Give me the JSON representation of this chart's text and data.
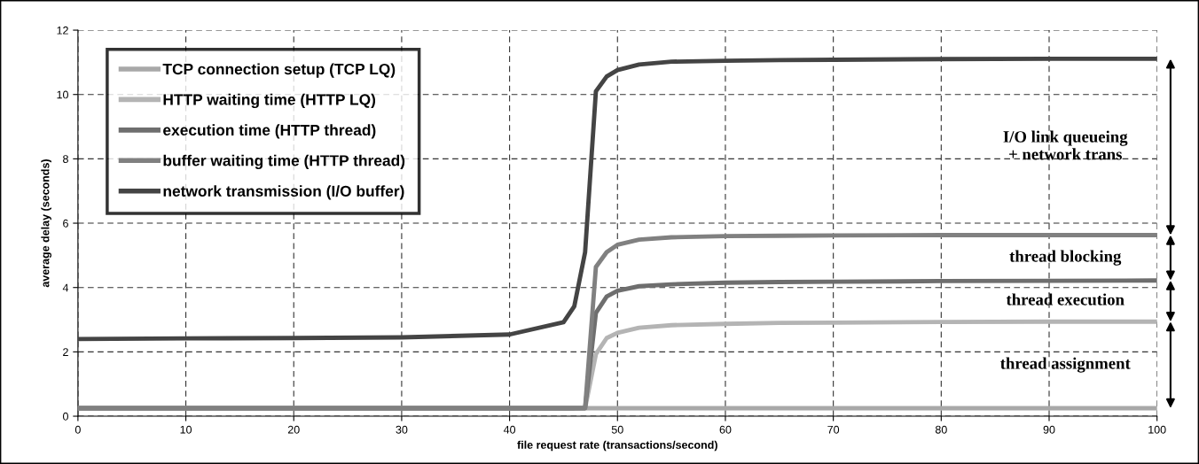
{
  "chart_data": {
    "type": "line",
    "xlabel": "file request rate (transactions/second)",
    "ylabel": "average delay (seconds)",
    "x": [
      0,
      10,
      20,
      30,
      40,
      45,
      46,
      47,
      48,
      49,
      50,
      52,
      55,
      60,
      65,
      70,
      80,
      90,
      100
    ],
    "series": [
      {
        "name": "TCP connection setup (TCP LQ)",
        "color": "#a8a8a8",
        "values": [
          0.25,
          0.25,
          0.25,
          0.25,
          0.25,
          0.25,
          0.25,
          0.25,
          0.25,
          0.25,
          0.25,
          0.25,
          0.25,
          0.25,
          0.25,
          0.25,
          0.25,
          0.25,
          0.25
        ]
      },
      {
        "name": "HTTP waiting time (HTTP LQ)",
        "color": "#b4b4b4",
        "values": [
          0.25,
          0.25,
          0.25,
          0.25,
          0.25,
          0.25,
          0.25,
          0.25,
          1.93,
          2.43,
          2.59,
          2.75,
          2.83,
          2.87,
          2.9,
          2.91,
          2.93,
          2.94,
          2.94
        ]
      },
      {
        "name": "execution time (HTTP thread)",
        "color": "#6e6e6e",
        "values": [
          0.25,
          0.25,
          0.25,
          0.25,
          0.25,
          0.25,
          0.25,
          0.25,
          3.21,
          3.72,
          3.9,
          4.04,
          4.1,
          4.15,
          4.17,
          4.18,
          4.2,
          4.21,
          4.22
        ]
      },
      {
        "name": "buffer waiting time (HTTP thread)",
        "color": "#808080",
        "values": [
          0.25,
          0.25,
          0.25,
          0.25,
          0.25,
          0.25,
          0.25,
          0.26,
          4.64,
          5.1,
          5.33,
          5.49,
          5.56,
          5.6,
          5.61,
          5.62,
          5.63,
          5.63,
          5.63
        ]
      },
      {
        "name": "network transmission (I/O buffer)",
        "color": "#444444",
        "values": [
          2.4,
          2.42,
          2.43,
          2.45,
          2.54,
          2.92,
          3.42,
          5.1,
          10.1,
          10.56,
          10.76,
          10.93,
          11.02,
          11.05,
          11.07,
          11.08,
          11.1,
          11.11,
          11.11
        ]
      }
    ],
    "xlim": [
      0,
      100
    ],
    "xticks": [
      0,
      10,
      20,
      30,
      40,
      50,
      60,
      70,
      80,
      90,
      100
    ],
    "ylim": [
      0,
      12
    ],
    "yticks": [
      0,
      2,
      4,
      6,
      8,
      10,
      12
    ],
    "grid": true,
    "legend": "top left",
    "marker": "none",
    "line_style": "solid",
    "annotations": [
      "I/O link queueing\n+ network trans",
      "thread blocking",
      "thread execution",
      "thread assignment"
    ]
  }
}
